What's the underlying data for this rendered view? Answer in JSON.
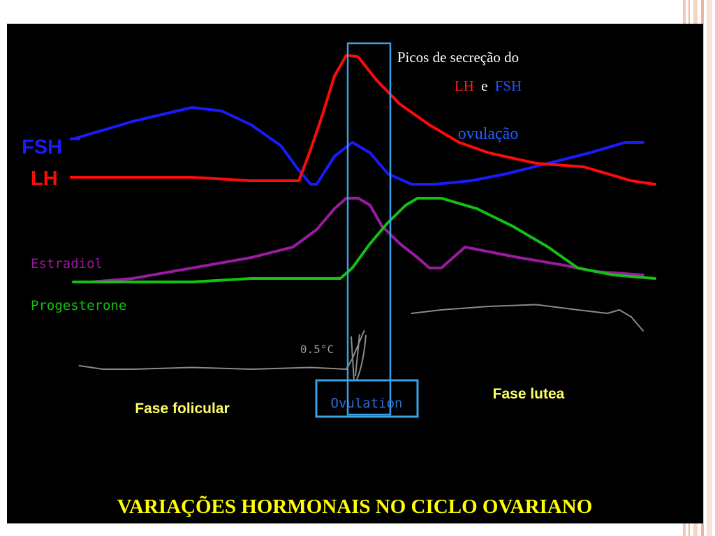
{
  "slide": {
    "title": "VARIAÇÕES HORMONAIS NO CICLO OVARIANO",
    "annotation": {
      "line1": "Picos de secreção do",
      "lh": "LH",
      "connector": "e",
      "fsh": "FSH",
      "ovulation": "ovulação"
    },
    "phases": {
      "follicular": "Fase folicular",
      "luteal": "Fase lutea",
      "ovulation_box": "Ovulation"
    },
    "temperature_scale": "0.5°C"
  },
  "colors": {
    "background": "#000000",
    "fsh": "#1a1aff",
    "lh": "#ff0a0a",
    "estradiol": "#9a1aa0",
    "progesterone": "#13c013",
    "temperature": "#8a8a8a",
    "ovulation_window": "#3aa0e8",
    "phase_text": "#ffff66",
    "title": "#ffff00",
    "accent_decor": "#f2b39c"
  },
  "chart_data": {
    "type": "line",
    "x_range": [
      0,
      100
    ],
    "y_range": [
      0,
      100
    ],
    "ovulation_window": [
      44,
      50
    ],
    "series": [
      {
        "name": "FSH",
        "key": "fsh",
        "points": [
          [
            0,
            75
          ],
          [
            10,
            80
          ],
          [
            20,
            84
          ],
          [
            25,
            83
          ],
          [
            30,
            79
          ],
          [
            35,
            73
          ],
          [
            38,
            66
          ],
          [
            40,
            62
          ],
          [
            41,
            62
          ],
          [
            44,
            70
          ],
          [
            47,
            74
          ],
          [
            50,
            71
          ],
          [
            53,
            65
          ],
          [
            57,
            62
          ],
          [
            61,
            62
          ],
          [
            67,
            63
          ],
          [
            73,
            65
          ],
          [
            80,
            68
          ],
          [
            87,
            71
          ],
          [
            93,
            74
          ],
          [
            96,
            74
          ]
        ]
      },
      {
        "name": "LH",
        "key": "lh",
        "points": [
          [
            0,
            64
          ],
          [
            10,
            64
          ],
          [
            20,
            64
          ],
          [
            30,
            63
          ],
          [
            38,
            63
          ],
          [
            40,
            72
          ],
          [
            42,
            82
          ],
          [
            44,
            93
          ],
          [
            46,
            99
          ],
          [
            48,
            98.5
          ],
          [
            51,
            92
          ],
          [
            55,
            85
          ],
          [
            60,
            79
          ],
          [
            65,
            74
          ],
          [
            70,
            71
          ],
          [
            78,
            68
          ],
          [
            86,
            67
          ],
          [
            94,
            63
          ],
          [
            98,
            62
          ]
        ]
      },
      {
        "name": "Estradiol",
        "key": "estradiol",
        "points": [
          [
            3,
            34
          ],
          [
            10,
            35
          ],
          [
            20,
            38
          ],
          [
            30,
            41
          ],
          [
            37,
            44
          ],
          [
            41,
            49
          ],
          [
            44,
            55
          ],
          [
            46,
            58
          ],
          [
            48,
            58
          ],
          [
            50,
            56
          ],
          [
            52,
            50
          ],
          [
            55,
            45
          ],
          [
            58,
            41
          ],
          [
            60,
            38
          ],
          [
            62,
            38
          ],
          [
            64,
            41
          ],
          [
            66,
            44
          ],
          [
            69,
            43
          ],
          [
            75,
            41
          ],
          [
            82,
            39
          ],
          [
            88,
            37
          ],
          [
            96,
            36
          ]
        ]
      },
      {
        "name": "Progesterone",
        "key": "progesterone",
        "points": [
          [
            0,
            34
          ],
          [
            10,
            34
          ],
          [
            20,
            34
          ],
          [
            30,
            35
          ],
          [
            40,
            35
          ],
          [
            45,
            35
          ],
          [
            47,
            38
          ],
          [
            50,
            45
          ],
          [
            53,
            51
          ],
          [
            56,
            56
          ],
          [
            58,
            58
          ],
          [
            62,
            58
          ],
          [
            68,
            55
          ],
          [
            74,
            50
          ],
          [
            80,
            44
          ],
          [
            85,
            38
          ],
          [
            91,
            36
          ],
          [
            98,
            35
          ]
        ]
      },
      {
        "name": "Temperature",
        "key": "temperature",
        "segments": [
          [
            [
              1,
              10
            ],
            [
              5,
              9
            ],
            [
              10,
              9
            ],
            [
              20,
              9.5
            ],
            [
              30,
              9
            ],
            [
              40,
              9.5
            ],
            [
              46,
              9
            ],
            [
              47,
              12
            ],
            [
              48,
              16
            ],
            [
              49,
              20
            ]
          ],
          [
            [
              57,
              25
            ],
            [
              62,
              26
            ],
            [
              70,
              27
            ],
            [
              78,
              27.5
            ],
            [
              85,
              26
            ],
            [
              90,
              25
            ],
            [
              92,
              26
            ],
            [
              94,
              24
            ],
            [
              96,
              20
            ]
          ]
        ]
      }
    ]
  }
}
